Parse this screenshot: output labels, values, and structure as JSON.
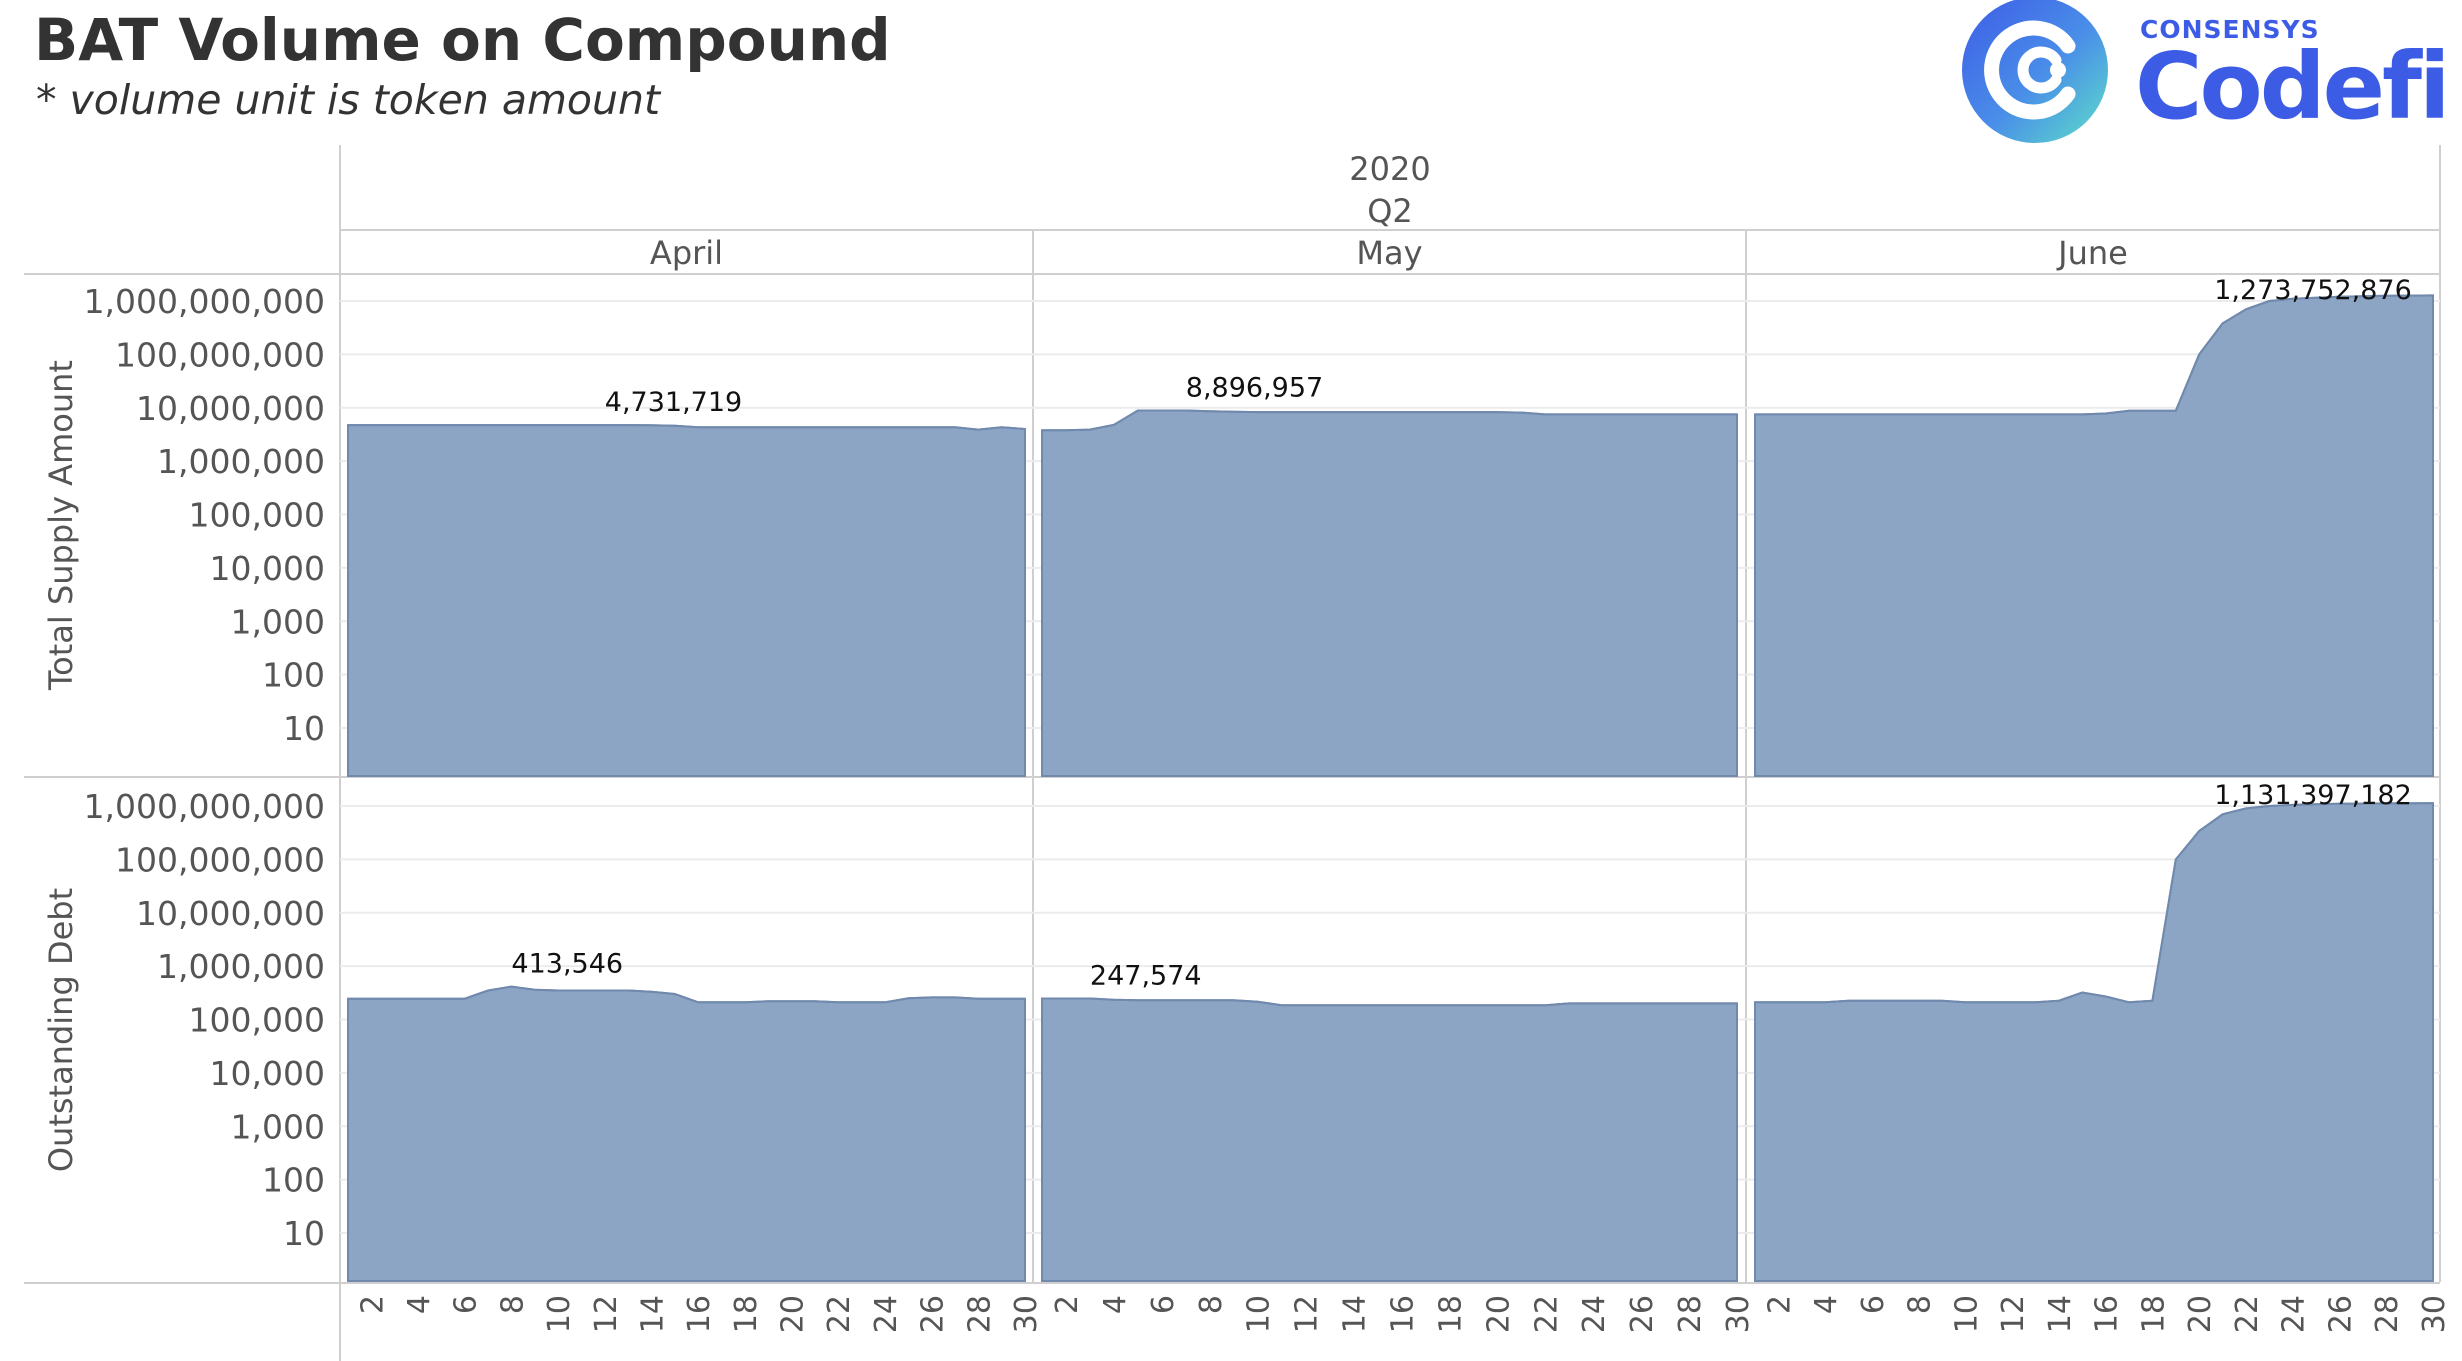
{
  "header": {
    "title": "BAT Volume on Compound",
    "subtitle": "* volume unit is token amount"
  },
  "logo": {
    "brand_small": "CONSENSYS",
    "brand_large": "Codefi",
    "color_primary": "#3d5ce6",
    "color_secondary": "#2fd3c7"
  },
  "chart_data": {
    "type": "area",
    "column_headers": {
      "year": "2020",
      "quarter": "Q2"
    },
    "months": [
      "April",
      "May",
      "June"
    ],
    "y_scale": "log",
    "ylim": [
      1,
      1300000000
    ],
    "y_ticks": [
      10,
      100,
      1000,
      10000,
      100000,
      1000000,
      10000000,
      100000000,
      1000000000
    ],
    "y_tick_labels": [
      "10",
      "100",
      "1,000",
      "10,000",
      "100,000",
      "1,000,000",
      "10,000,000",
      "100,000,000",
      "1,000,000,000"
    ],
    "x_tick_labels": [
      "2",
      "4",
      "6",
      "8",
      "10",
      "12",
      "14",
      "16",
      "18",
      "20",
      "22",
      "24",
      "26",
      "28",
      "30"
    ],
    "fill_color": "#8da5c4",
    "line_color": "#7089ad",
    "rows": [
      {
        "ylabel": "Total Supply Amount",
        "panels": [
          {
            "month": "April",
            "days": [
              1,
              2,
              3,
              4,
              5,
              6,
              7,
              8,
              9,
              10,
              11,
              12,
              13,
              14,
              15,
              16,
              17,
              18,
              19,
              20,
              21,
              22,
              23,
              24,
              25,
              26,
              27,
              28,
              29,
              30
            ],
            "values": [
              4731719,
              4731719,
              4731719,
              4731719,
              4731719,
              4731719,
              4731719,
              4731719,
              4731719,
              4731719,
              4731719,
              4731719,
              4731719,
              4700000,
              4600000,
              4300000,
              4300000,
              4300000,
              4300000,
              4300000,
              4300000,
              4300000,
              4300000,
              4300000,
              4300000,
              4300000,
              4300000,
              3900000,
              4300000,
              4000000
            ],
            "label": "4,731,719",
            "label_day": 12
          },
          {
            "month": "May",
            "days": [
              1,
              2,
              3,
              4,
              5,
              6,
              7,
              8,
              9,
              10,
              11,
              12,
              13,
              14,
              15,
              16,
              17,
              18,
              19,
              20,
              21,
              22,
              23,
              24,
              25,
              26,
              27,
              28,
              29,
              30
            ],
            "values": [
              3800000,
              3800000,
              3900000,
              4800000,
              8896957,
              8896957,
              8896957,
              8600000,
              8400000,
              8300000,
              8300000,
              8300000,
              8300000,
              8300000,
              8300000,
              8300000,
              8300000,
              8300000,
              8300000,
              8300000,
              8100000,
              7500000,
              7500000,
              7500000,
              7500000,
              7500000,
              7500000,
              7500000,
              7500000,
              7500000
            ],
            "label": "8,896,957",
            "label_day": 7
          },
          {
            "month": "June",
            "days": [
              1,
              2,
              3,
              4,
              5,
              6,
              7,
              8,
              9,
              10,
              11,
              12,
              13,
              14,
              15,
              16,
              17,
              18,
              19,
              20,
              21,
              22,
              23,
              24,
              25,
              26,
              27,
              28,
              29,
              30
            ],
            "values": [
              7500000,
              7500000,
              7500000,
              7500000,
              7500000,
              7500000,
              7500000,
              7500000,
              7500000,
              7500000,
              7500000,
              7500000,
              7500000,
              7500000,
              7500000,
              7800000,
              8800000,
              8800000,
              8800000,
              100000000,
              380000000,
              700000000,
              1000000000,
              1100000000,
              1150000000,
              1200000000,
              1230000000,
              1250000000,
              1265000000,
              1273752876
            ],
            "label": "1,273,752,876",
            "label_day": 27
          }
        ]
      },
      {
        "ylabel": "Outstanding Debt",
        "panels": [
          {
            "month": "April",
            "days": [
              1,
              2,
              3,
              4,
              5,
              6,
              7,
              8,
              9,
              10,
              11,
              12,
              13,
              14,
              15,
              16,
              17,
              18,
              19,
              20,
              21,
              22,
              23,
              24,
              25,
              26,
              27,
              28,
              29,
              30
            ],
            "values": [
              245000,
              245000,
              245000,
              245000,
              245000,
              245000,
              350000,
              413546,
              360000,
              350000,
              350000,
              350000,
              350000,
              330000,
              300000,
              210000,
              210000,
              210000,
              220000,
              220000,
              220000,
              210000,
              210000,
              210000,
              250000,
              260000,
              260000,
              245000,
              245000,
              245000
            ],
            "label": "413,546",
            "label_day": 8
          },
          {
            "month": "May",
            "days": [
              1,
              2,
              3,
              4,
              5,
              6,
              7,
              8,
              9,
              10,
              11,
              12,
              13,
              14,
              15,
              16,
              17,
              18,
              19,
              20,
              21,
              22,
              23,
              24,
              25,
              26,
              27,
              28,
              29,
              30
            ],
            "values": [
              247574,
              247574,
              247574,
              235000,
              230000,
              230000,
              230000,
              230000,
              230000,
              215000,
              185000,
              185000,
              185000,
              185000,
              185000,
              185000,
              185000,
              185000,
              185000,
              185000,
              185000,
              185000,
              200000,
              200000,
              200000,
              200000,
              200000,
              200000,
              200000,
              200000
            ],
            "label": "247,574",
            "label_day": 3
          },
          {
            "month": "June",
            "days": [
              1,
              2,
              3,
              4,
              5,
              6,
              7,
              8,
              9,
              10,
              11,
              12,
              13,
              14,
              15,
              16,
              17,
              18,
              19,
              20,
              21,
              22,
              23,
              24,
              25,
              26,
              27,
              28,
              29,
              30
            ],
            "values": [
              210000,
              210000,
              210000,
              210000,
              225000,
              225000,
              225000,
              225000,
              225000,
              210000,
              210000,
              210000,
              210000,
              225000,
              320000,
              270000,
              210000,
              225000,
              100000000,
              340000000,
              700000000,
              900000000,
              1000000000,
              1050000000,
              1080000000,
              1100000000,
              1110000000,
              1120000000,
              1125000000,
              1131397182
            ],
            "label": "1,131,397,182",
            "label_day": 27
          }
        ]
      }
    ]
  }
}
